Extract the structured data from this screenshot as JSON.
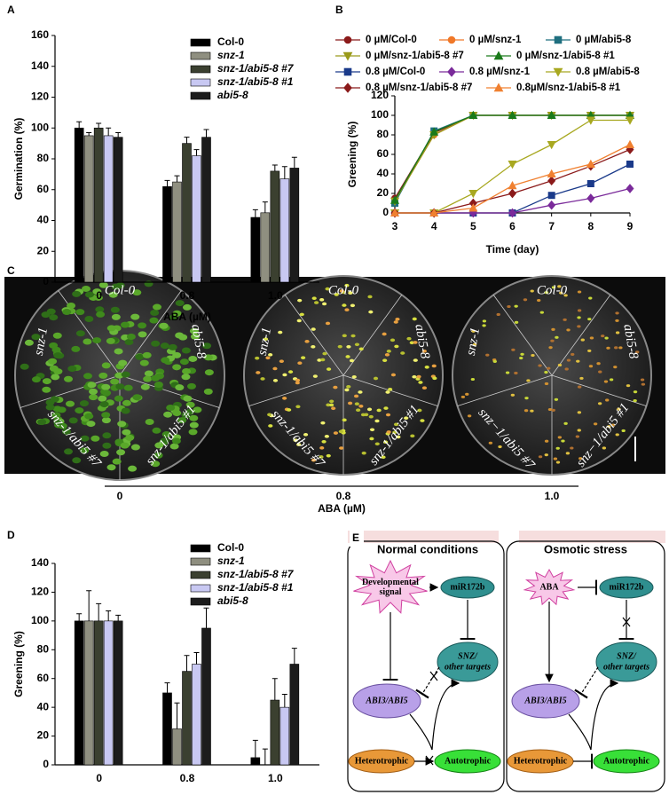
{
  "panel_letters": [
    "A",
    "B",
    "C",
    "D",
    "E"
  ],
  "chart_data": [
    {
      "type": "bar",
      "y_label": "Germination (%)",
      "x_label": "ABA (µM)",
      "categories": [
        "0",
        "0.8",
        "1.0"
      ],
      "ylim": [
        0,
        160
      ],
      "yticks": [
        0,
        20,
        40,
        60,
        80,
        100,
        120,
        140,
        160
      ],
      "series": [
        {
          "name": "Col-0",
          "color": "#000000",
          "values": [
            100,
            62,
            42
          ],
          "errors": [
            4,
            4,
            5
          ]
        },
        {
          "name": "snz-1",
          "color": "#8f8f80",
          "values": [
            95,
            65,
            45
          ],
          "errors": [
            2,
            4,
            7
          ]
        },
        {
          "name": "snz-1/abi5-8 #7",
          "color": "#3b4030",
          "values": [
            100,
            90,
            72
          ],
          "errors": [
            3,
            4,
            4
          ]
        },
        {
          "name": "snz-1/abi5-8 #1",
          "color": "#c8c8f2",
          "values": [
            95,
            82,
            67
          ],
          "errors": [
            5,
            4,
            8
          ]
        },
        {
          "name": "abi5-8",
          "color": "#1c1c1c",
          "values": [
            94,
            94,
            74
          ],
          "errors": [
            3,
            5,
            7
          ]
        }
      ]
    },
    {
      "type": "line",
      "y_label": "Greening (%)",
      "x_label": "Time (day)",
      "x": [
        3,
        4,
        5,
        6,
        7,
        8,
        9
      ],
      "xlim": [
        3,
        9
      ],
      "xticks": [
        3,
        4,
        5,
        6,
        7,
        8,
        9
      ],
      "ylim": [
        0,
        120
      ],
      "yticks": [
        0,
        20,
        40,
        60,
        80,
        100,
        120
      ],
      "series": [
        {
          "name": "0 µM/Col-0",
          "color": "#8b1a1a",
          "marker": "circle",
          "values": [
            15,
            82,
            100,
            100,
            100,
            100,
            100
          ]
        },
        {
          "name": "0 µM/snz-1",
          "color": "#f07828",
          "marker": "circle",
          "values": [
            12,
            80,
            100,
            100,
            100,
            100,
            100
          ]
        },
        {
          "name": "0 µM/abi5-8",
          "color": "#1f6f7f",
          "marker": "square",
          "values": [
            10,
            84,
            100,
            100,
            100,
            100,
            100
          ]
        },
        {
          "name": "0 µM/snz-1/abi5-8 #7",
          "color": "#9a9a1a",
          "marker": "triangle-down",
          "values": [
            12,
            80,
            100,
            100,
            100,
            100,
            100
          ]
        },
        {
          "name": "0 µM/snz-1/abi5-8 #1",
          "color": "#1a7a1a",
          "marker": "triangle-up",
          "values": [
            13,
            83,
            100,
            100,
            100,
            100,
            100
          ]
        },
        {
          "name": "0.8 µM/Col-0",
          "color": "#1a3a8a",
          "marker": "square",
          "values": [
            0,
            0,
            0,
            0,
            18,
            30,
            50
          ]
        },
        {
          "name": "0.8 µM/snz-1",
          "color": "#7a2a9a",
          "marker": "diamond",
          "values": [
            0,
            0,
            0,
            0,
            8,
            15,
            25
          ]
        },
        {
          "name": "0.8 µM/abi5-8",
          "color": "#a8a820",
          "marker": "triangle-down",
          "values": [
            0,
            0,
            20,
            50,
            70,
            95,
            95
          ]
        },
        {
          "name": "0.8 µM/snz-1/abi5-8 #7",
          "color": "#8b1a1a",
          "marker": "diamond",
          "values": [
            0,
            0,
            10,
            20,
            33,
            48,
            65
          ]
        },
        {
          "name": "0.8µM/snz-1/abi5-8 #1",
          "color": "#f08030",
          "marker": "triangle-up",
          "values": [
            0,
            0,
            5,
            28,
            40,
            50,
            70
          ]
        }
      ]
    },
    {
      "type": "bar",
      "y_label": "Greening (%)",
      "x_label": "ABA (µM)",
      "categories": [
        "0",
        "0.8",
        "1.0"
      ],
      "ylim": [
        0,
        140
      ],
      "yticks": [
        0,
        20,
        40,
        60,
        80,
        100,
        120,
        140
      ],
      "series": [
        {
          "name": "Col-0",
          "color": "#000000",
          "values": [
            100,
            50,
            5
          ],
          "errors": [
            5,
            7,
            12
          ]
        },
        {
          "name": "snz-1",
          "color": "#8f8f80",
          "values": [
            100,
            25,
            0
          ],
          "errors": [
            21,
            18,
            11
          ]
        },
        {
          "name": "snz-1/abi5-8 #7",
          "color": "#3b4030",
          "values": [
            100,
            65,
            45
          ],
          "errors": [
            12,
            11,
            15
          ]
        },
        {
          "name": "snz-1/abi5-8 #1",
          "color": "#c8c8f2",
          "values": [
            100,
            70,
            40
          ],
          "errors": [
            7,
            8,
            9
          ]
        },
        {
          "name": "abi5-8",
          "color": "#1c1c1c",
          "values": [
            100,
            95,
            70
          ],
          "errors": [
            4,
            14,
            11
          ]
        }
      ]
    }
  ],
  "panel_c": {
    "x_label": "ABA (µM)",
    "plates": [
      {
        "concentration": "0",
        "sectors": [
          "Col-0",
          "abi5-8",
          "snz-1/abi5 #1",
          "snz-1/abi5 #7",
          "snz-1"
        ]
      },
      {
        "concentration": "0.8",
        "sectors": [
          "Col-0",
          "abi5-8",
          "snz-1/abi5 #1",
          "snz-1/abi5 #7",
          "snz-1"
        ]
      },
      {
        "concentration": "1.0",
        "sectors": [
          "Col-0",
          "abi5-8",
          "snz−1/abi5 #1",
          "snz−1/abi5 #7",
          "snz-1"
        ]
      }
    ]
  },
  "panel_e": {
    "left": {
      "title": "Normal conditions",
      "signal": [
        "Developmental",
        "signal"
      ],
      "mir": "miR172b",
      "targets": [
        "SNZ/",
        "other targets"
      ],
      "abi": "ABI3/ABI5",
      "hetero": "Heterotrophic",
      "auto": "Autotrophic"
    },
    "right": {
      "title": "Osmotic stress",
      "signal": [
        "ABA"
      ],
      "mir": "miR172b",
      "targets": [
        "SNZ/",
        "other targets"
      ],
      "abi": "ABI3/ABI5",
      "hetero": "Heterotrophic",
      "auto": "Autotrophic"
    }
  }
}
